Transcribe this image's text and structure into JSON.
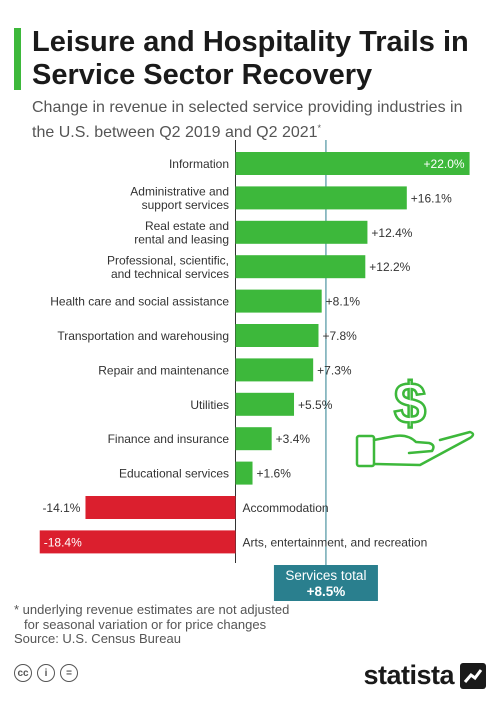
{
  "header": {
    "title": "Leisure and Hospitality Trails in Service Sector Recovery",
    "subtitle": "Change in revenue in selected service providing industries in the U.S. between Q2 2019 and Q2 2021",
    "subtitle_mark": "*"
  },
  "colors": {
    "accent": "#3DB83B",
    "positive": "#3DB83B",
    "negative": "#DB1F2E",
    "total_line": "#2A7F8E",
    "total_badge": "#2A7F8E"
  },
  "chart_data": {
    "type": "bar",
    "orientation": "horizontal",
    "title": "Leisure and Hospitality Trails in Service Sector Recovery",
    "categories": [
      "Information",
      "Administrative and support services",
      "Real estate and rental and leasing",
      "Professional, scientific, and technical services",
      "Health care and social assistance",
      "Transportation and warehousing",
      "Repair and maintenance",
      "Utilities",
      "Finance and insurance",
      "Educational services",
      "Accommodation",
      "Arts, entertainment, and recreation"
    ],
    "category_lines": [
      [
        "Information"
      ],
      [
        "Administrative and",
        "support services"
      ],
      [
        "Real estate and",
        "rental and leasing"
      ],
      [
        "Professional, scientific,",
        "and technical services"
      ],
      [
        "Health care and social assistance"
      ],
      [
        "Transportation and warehousing"
      ],
      [
        "Repair and maintenance"
      ],
      [
        "Utilities"
      ],
      [
        "Finance and insurance"
      ],
      [
        "Educational services"
      ],
      [
        "Accommodation"
      ],
      [
        "Arts, entertainment, and recreation"
      ]
    ],
    "values": [
      22.0,
      16.1,
      12.4,
      12.2,
      8.1,
      7.8,
      7.3,
      5.5,
      3.4,
      1.6,
      -14.1,
      -18.4
    ],
    "value_labels": [
      "+22.0%",
      "+16.1%",
      "+12.4%",
      "+12.2%",
      "+8.1%",
      "+7.8%",
      "+7.3%",
      "+5.5%",
      "+3.4%",
      "+1.6%",
      "-14.1%",
      "-18.4%"
    ],
    "unit": "%",
    "xlim": [
      -18.4,
      22.0
    ],
    "reference_line": {
      "value": 8.5,
      "label": "Services total",
      "value_label": "+8.5%"
    },
    "grid": false,
    "legend": "none"
  },
  "decoration": {
    "icon": "hand-dollar-icon",
    "glyph": "$"
  },
  "footer": {
    "note_line1": "* underlying revenue estimates are not adjusted",
    "note_line2": "for seasonal variation or for price changes",
    "source": "Source: U.S. Census Bureau",
    "license_icons": [
      "cc",
      "i",
      "="
    ],
    "brand": "statista"
  }
}
